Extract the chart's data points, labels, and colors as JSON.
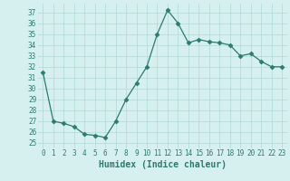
{
  "x": [
    0,
    1,
    2,
    3,
    4,
    5,
    6,
    7,
    8,
    9,
    10,
    11,
    12,
    13,
    14,
    15,
    16,
    17,
    18,
    19,
    20,
    21,
    22,
    23
  ],
  "y": [
    31.5,
    27.0,
    26.8,
    26.5,
    25.8,
    25.7,
    25.5,
    27.0,
    29.0,
    30.5,
    32.0,
    35.0,
    37.2,
    36.0,
    34.2,
    34.5,
    34.3,
    34.2,
    34.0,
    33.0,
    33.2,
    32.5,
    32.0,
    32.0
  ],
  "line_color": "#2d7a6e",
  "marker": "D",
  "marker_size": 2.5,
  "bg_color": "#d6f0ef",
  "grid_color": "#b0d8d5",
  "xlabel": "Humidex (Indice chaleur)",
  "xlim": [
    -0.5,
    23.5
  ],
  "ylim": [
    24.5,
    37.8
  ],
  "yticks": [
    25,
    26,
    27,
    28,
    29,
    30,
    31,
    32,
    33,
    34,
    35,
    36,
    37
  ],
  "xticks": [
    0,
    1,
    2,
    3,
    4,
    5,
    6,
    7,
    8,
    9,
    10,
    11,
    12,
    13,
    14,
    15,
    16,
    17,
    18,
    19,
    20,
    21,
    22,
    23
  ],
  "tick_label_fontsize": 5.5,
  "xlabel_fontsize": 7.0
}
